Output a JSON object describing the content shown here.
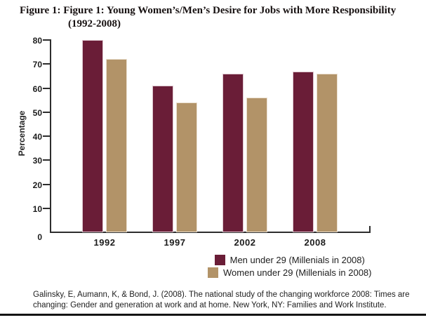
{
  "header": {
    "title_line1": "Figure 1: Figure 1: Young Women’s/Men’s Desire for Jobs with More Responsibility",
    "title_line2": "(1992-2008)"
  },
  "chart_data": {
    "type": "bar",
    "title": "Figure 1: Figure 1: Young Women’s/Men’s Desire for Jobs with More Responsibility (1992-2008)",
    "categories": [
      "1992",
      "1997",
      "2002",
      "2008"
    ],
    "series": [
      {
        "name": "Men under 29 (Millenials in 2008)",
        "color": "#6a1d37",
        "values": [
          80,
          61,
          66,
          67
        ]
      },
      {
        "name": "Women under 29 (Millenials in 2008)",
        "color": "#b29368",
        "values": [
          72,
          54,
          56,
          66
        ]
      }
    ],
    "xlabel": "",
    "ylabel": "Percentage",
    "ylim": [
      0,
      80
    ],
    "yticks": [
      0,
      10,
      20,
      30,
      40,
      50,
      60,
      70,
      80
    ],
    "grid": false,
    "legend_position": "bottom",
    "bar_colors": {
      "men": "#6a1d37",
      "women": "#b29368"
    },
    "axis_color": "#2d2d2d"
  },
  "citation": {
    "line1": "Galinsky, E, Aumann, K, & Bond, J. (2008). The national study of the changing workforce 2008: Times are",
    "line2": "changing: Gender and generation at work and at home. New York, NY: Families and Work Institute."
  }
}
